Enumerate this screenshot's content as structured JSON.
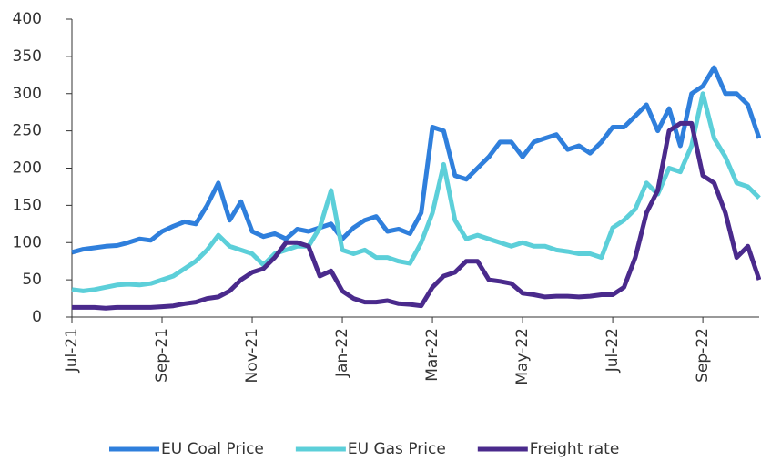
{
  "chart_data": {
    "type": "line",
    "categories": [
      "Jul-21",
      null,
      null,
      null,
      null,
      null,
      null,
      null,
      "Sep-21",
      null,
      null,
      null,
      null,
      null,
      null,
      null,
      "Nov-21",
      null,
      null,
      null,
      null,
      null,
      null,
      null,
      "Jan-22",
      null,
      null,
      null,
      null,
      null,
      null,
      null,
      "Mar-22",
      null,
      null,
      null,
      null,
      null,
      null,
      null,
      "May-22",
      null,
      null,
      null,
      null,
      null,
      null,
      null,
      "Jul-22",
      null,
      null,
      null,
      null,
      null,
      null,
      null,
      "Sep-22",
      null,
      null,
      null,
      null,
      null
    ],
    "series": [
      {
        "name": "EU Coal Price",
        "color": "#2f7fdc",
        "values": [
          87,
          91,
          93,
          95,
          96,
          100,
          105,
          103,
          115,
          122,
          128,
          125,
          150,
          180,
          130,
          155,
          115,
          108,
          112,
          105,
          118,
          115,
          120,
          125,
          105,
          120,
          130,
          135,
          115,
          118,
          112,
          140,
          255,
          250,
          190,
          185,
          200,
          215,
          235,
          235,
          215,
          235,
          240,
          245,
          225,
          230,
          220,
          235,
          255,
          255,
          270,
          285,
          250,
          280,
          230,
          300,
          310,
          335,
          300,
          300,
          285,
          240
        ]
      },
      {
        "name": "EU Gas Price",
        "color": "#5ccfd9",
        "values": [
          37,
          35,
          37,
          40,
          43,
          44,
          43,
          45,
          50,
          55,
          65,
          75,
          90,
          110,
          95,
          90,
          85,
          70,
          85,
          90,
          95,
          95,
          120,
          170,
          90,
          85,
          90,
          80,
          80,
          75,
          72,
          100,
          140,
          205,
          130,
          105,
          110,
          105,
          100,
          95,
          100,
          95,
          95,
          90,
          88,
          85,
          85,
          80,
          120,
          130,
          145,
          180,
          165,
          200,
          195,
          230,
          300,
          240,
          215,
          180,
          175,
          160
        ]
      },
      {
        "name": "Freight rate",
        "color": "#4a2a8c",
        "values": [
          13,
          13,
          13,
          12,
          13,
          13,
          13,
          13,
          14,
          15,
          18,
          20,
          25,
          27,
          35,
          50,
          60,
          65,
          80,
          100,
          100,
          95,
          55,
          62,
          35,
          25,
          20,
          20,
          22,
          18,
          17,
          15,
          40,
          55,
          60,
          75,
          75,
          50,
          48,
          45,
          32,
          30,
          27,
          28,
          28,
          27,
          28,
          30,
          30,
          40,
          80,
          140,
          170,
          250,
          260,
          260,
          190,
          180,
          140,
          80,
          95,
          50
        ]
      }
    ],
    "ylim": [
      0,
      400
    ],
    "yticks": [
      0,
      50,
      100,
      150,
      200,
      250,
      300,
      350,
      400
    ],
    "legend": "bottom"
  }
}
